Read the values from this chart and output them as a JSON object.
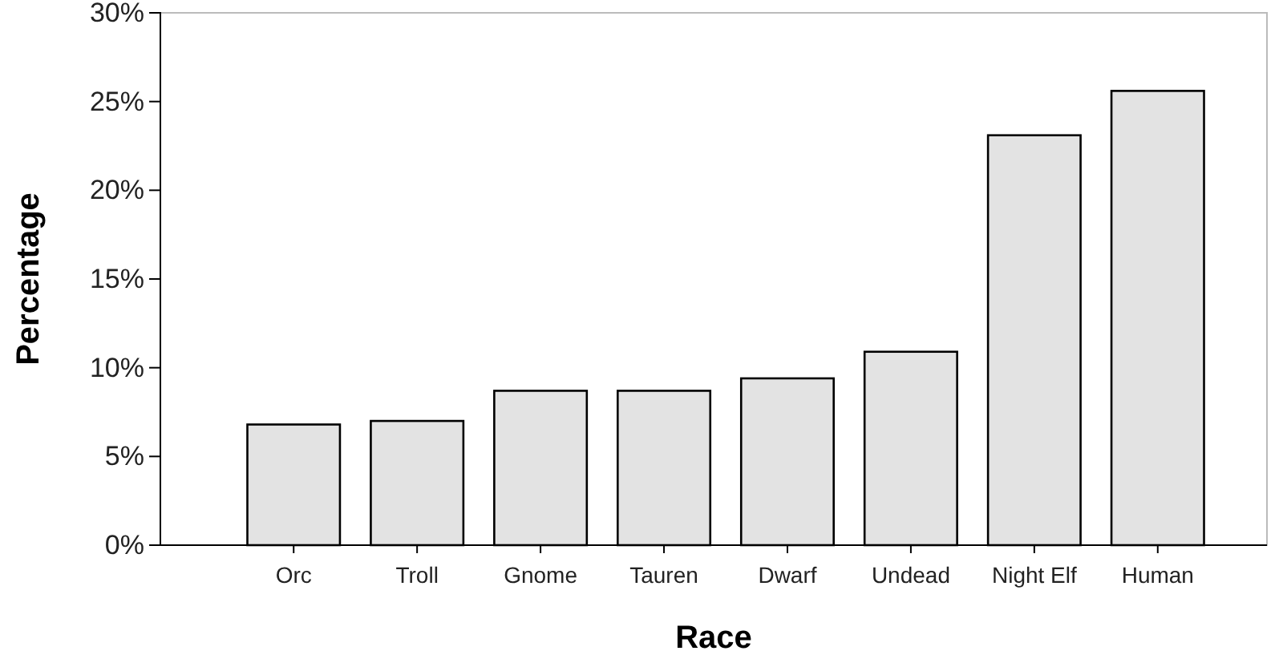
{
  "chart_data": {
    "type": "bar",
    "xlabel": "Race",
    "ylabel": "Percentage",
    "categories": [
      "Orc",
      "Troll",
      "Gnome",
      "Tauren",
      "Dwarf",
      "Undead",
      "Night Elf",
      "Human"
    ],
    "values": [
      6.8,
      7.0,
      8.7,
      8.7,
      9.4,
      10.9,
      23.1,
      25.6
    ],
    "color": "#e3e3e3",
    "ylim": [
      0,
      30
    ],
    "yticks": [
      {
        "value": 0,
        "label": "0%"
      },
      {
        "value": 5,
        "label": "5%"
      },
      {
        "value": 10,
        "label": "10%"
      },
      {
        "value": 15,
        "label": "15%"
      },
      {
        "value": 20,
        "label": "20%"
      },
      {
        "value": 25,
        "label": "25%"
      },
      {
        "value": 30,
        "label": "30%"
      }
    ],
    "grid": false
  }
}
